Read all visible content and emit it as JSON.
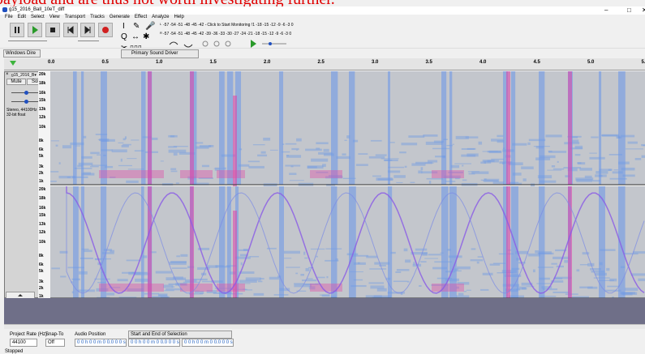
{
  "heading": "payload and are thus not worth investigating further.",
  "window": {
    "title": "g15_2016_Ball_10eT_diff",
    "controls": [
      "–",
      "□",
      "✕"
    ]
  },
  "menu": [
    "File",
    "Edit",
    "Select",
    "View",
    "Transport",
    "Tracks",
    "Generate",
    "Effect",
    "Analyze",
    "Help"
  ],
  "meters": {
    "record": "-57 -54 -51 -48 -45 -42 - Click to Start Monitoring !1 -18 -15 -12 -9 -6 -3 0",
    "play": "-57 -54 -51 -48 -45 -42 -39 -36 -33 -30 -27 -24 -21 -18 -15 -12 -9 -6 -3 0",
    "channels": [
      "L",
      "R"
    ]
  },
  "devices": {
    "host": "Windows Dire",
    "output": "Primary Sound Driver"
  },
  "timeline": [
    "0.0",
    "0.5",
    "1.0",
    "1.5",
    "2.0",
    "2.5",
    "3.0",
    "3.5",
    "4.0",
    "4.5",
    "5.0",
    "5.5"
  ],
  "track": {
    "name": "g15_2016_B▾",
    "mute": "Mute",
    "solo": "Solo",
    "info": "Stereo, 44100Hz\n32-bit float",
    "close": "×"
  },
  "frequencies": [
    "20k",
    "18k",
    "16k",
    "15k",
    "13k",
    "12k",
    "10k",
    "8k",
    "6k",
    "5k",
    "3k",
    "2k",
    "1k"
  ],
  "selection_bar": {
    "rate_label": "Project Rate (Hz)",
    "rate": "44100",
    "snap_label": "Snap-To",
    "snap": "Off",
    "position_label": "Audio Position",
    "position": "0 0 h 0 0 m 0 0.0 0 0 s",
    "selection_label": "Start and End of Selection",
    "start": "0 0 h 0 0 m 0 0.0 0 0 s",
    "end": "0 0 h 0 0 m 0 0.0 0 0 s"
  },
  "status": "Stopped"
}
